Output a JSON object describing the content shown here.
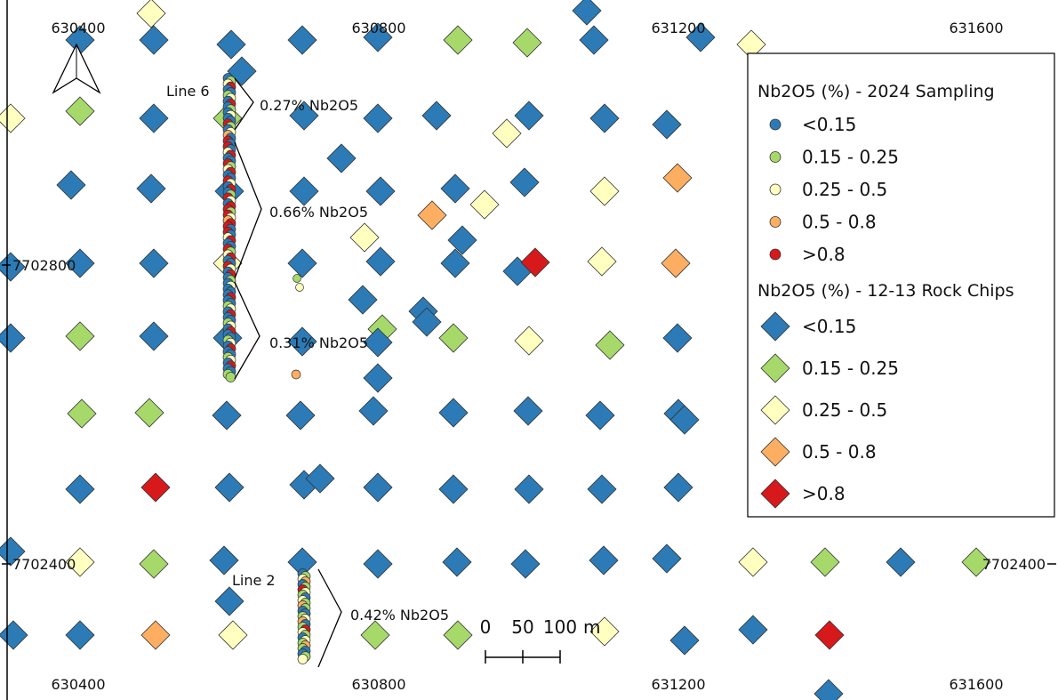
{
  "map": {
    "grid_labels": {
      "easting": [
        "630400",
        "630800",
        "631200",
        "631600"
      ],
      "northing": [
        "7702800",
        "7702400"
      ]
    },
    "line_labels": {
      "line6": "Line 6",
      "line2": "Line 2"
    },
    "interval_labels": {
      "line6_a": "0.27% Nb2O5",
      "line6_b": "0.66% Nb2O5",
      "line6_c": "0.31% Nb2O5",
      "line2_a": "0.42% Nb2O5"
    },
    "scale_bar": {
      "ticks": [
        "0",
        "50",
        "100"
      ],
      "unit": "m"
    },
    "north_arrow_icon": "north-arrow-icon"
  },
  "legend": {
    "sampling_title": "Nb2O5 (%) - 2024 Sampling",
    "rockchip_title": "Nb2O5 (%) - 12-13 Rock Chips",
    "classes": [
      {
        "label": "<0.15",
        "color": "#2c7bb6"
      },
      {
        "label": "0.15 - 0.25",
        "color": "#a6d96a"
      },
      {
        "label": "0.25 - 0.5",
        "color": "#ffffbf"
      },
      {
        "label": "0.5 - 0.8",
        "color": "#fdae61"
      },
      {
        "label": ">0.8",
        "color": "#d7191c"
      }
    ]
  }
}
